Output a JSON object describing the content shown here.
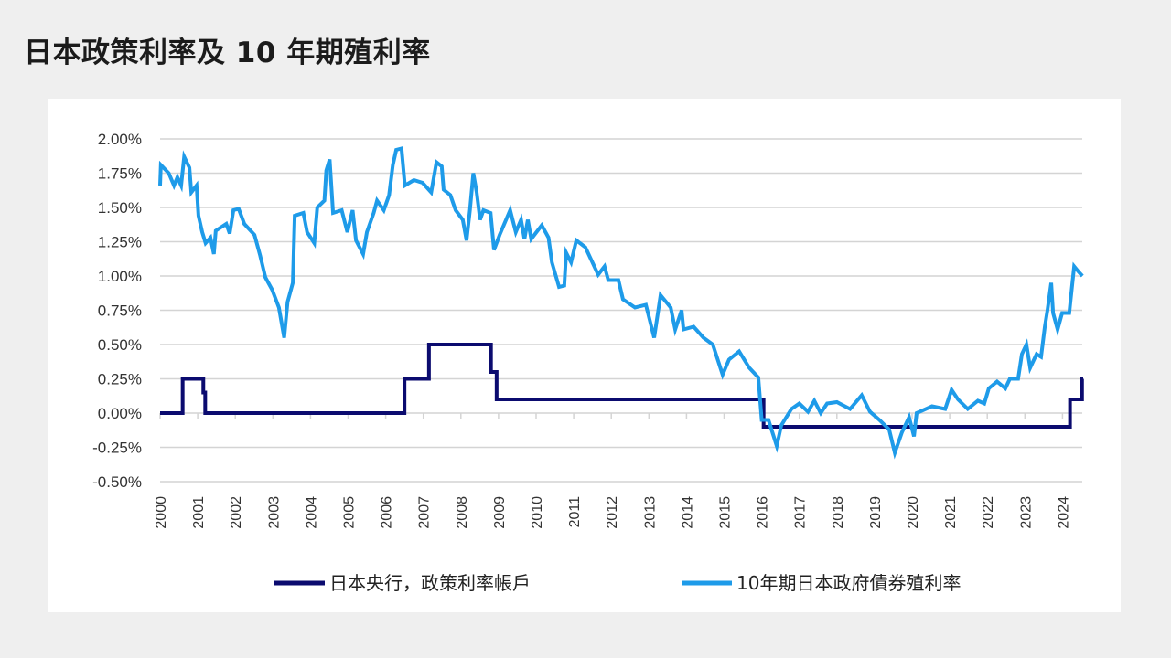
{
  "title": "日本政策利率及 10 年期殖利率",
  "chart_data": {
    "type": "line",
    "title": "日本政策利率及 10 年期殖利率",
    "xlabel": "",
    "ylabel": "",
    "xlim": [
      2000,
      2024.55
    ],
    "ylim": [
      -0.5,
      2.0
    ],
    "grid": true,
    "legend_position": "bottom",
    "yticks": [
      "2.00%",
      "1.75%",
      "1.50%",
      "1.25%",
      "1.00%",
      "0.75%",
      "0.50%",
      "0.25%",
      "0.00%",
      "-0.25%",
      "-0.50%"
    ],
    "ytick_values": [
      2.0,
      1.75,
      1.5,
      1.25,
      1.0,
      0.75,
      0.5,
      0.25,
      0.0,
      -0.25,
      -0.5
    ],
    "xticks": [
      "2000",
      "2001",
      "2002",
      "2003",
      "2004",
      "2005",
      "2006",
      "2007",
      "2008",
      "2009",
      "2010",
      "2011",
      "2012",
      "2013",
      "2014",
      "2015",
      "2016",
      "2017",
      "2018",
      "2019",
      "2020",
      "2021",
      "2022",
      "2023",
      "2024"
    ],
    "series": [
      {
        "name": "日本央行，政策利率帳戶",
        "color": "#0b0b6f",
        "step": true,
        "points": [
          [
            2000,
            0
          ],
          [
            2000.6,
            0.25
          ],
          [
            2001.15,
            0.15
          ],
          [
            2001.2,
            0
          ],
          [
            2006.5,
            0.25
          ],
          [
            2007.15,
            0.5
          ],
          [
            2008.8,
            0.3
          ],
          [
            2008.95,
            0.1
          ],
          [
            2016.05,
            -0.1
          ],
          [
            2024.2,
            0.1
          ],
          [
            2024.52,
            0.25
          ],
          [
            2024.55,
            0.25
          ]
        ]
      },
      {
        "name": "10年期日本政府債券殖利率",
        "color": "#1e9be9",
        "step": false,
        "points": [
          [
            2000.0,
            1.66
          ],
          [
            2000.02,
            1.81
          ],
          [
            2000.23,
            1.75
          ],
          [
            2000.37,
            1.66
          ],
          [
            2000.46,
            1.72
          ],
          [
            2000.56,
            1.66
          ],
          [
            2000.64,
            1.87
          ],
          [
            2000.78,
            1.79
          ],
          [
            2000.83,
            1.61
          ],
          [
            2000.97,
            1.66
          ],
          [
            2001.02,
            1.44
          ],
          [
            2001.12,
            1.32
          ],
          [
            2001.21,
            1.24
          ],
          [
            2001.34,
            1.28
          ],
          [
            2001.43,
            1.16
          ],
          [
            2001.48,
            1.33
          ],
          [
            2001.76,
            1.38
          ],
          [
            2001.85,
            1.31
          ],
          [
            2001.95,
            1.48
          ],
          [
            2002.09,
            1.49
          ],
          [
            2002.24,
            1.38
          ],
          [
            2002.51,
            1.3
          ],
          [
            2002.66,
            1.15
          ],
          [
            2002.8,
            0.99
          ],
          [
            2002.98,
            0.9
          ],
          [
            2003.16,
            0.77
          ],
          [
            2003.3,
            0.55
          ],
          [
            2003.39,
            0.81
          ],
          [
            2003.53,
            0.95
          ],
          [
            2003.58,
            1.44
          ],
          [
            2003.81,
            1.46
          ],
          [
            2003.91,
            1.32
          ],
          [
            2004.1,
            1.24
          ],
          [
            2004.18,
            1.5
          ],
          [
            2004.37,
            1.55
          ],
          [
            2004.42,
            1.77
          ],
          [
            2004.51,
            1.85
          ],
          [
            2004.6,
            1.46
          ],
          [
            2004.83,
            1.48
          ],
          [
            2004.98,
            1.32
          ],
          [
            2005.12,
            1.48
          ],
          [
            2005.21,
            1.26
          ],
          [
            2005.4,
            1.16
          ],
          [
            2005.5,
            1.32
          ],
          [
            2005.68,
            1.46
          ],
          [
            2005.77,
            1.55
          ],
          [
            2005.95,
            1.48
          ],
          [
            2006.09,
            1.59
          ],
          [
            2006.19,
            1.81
          ],
          [
            2006.28,
            1.92
          ],
          [
            2006.42,
            1.93
          ],
          [
            2006.51,
            1.66
          ],
          [
            2006.75,
            1.7
          ],
          [
            2006.98,
            1.68
          ],
          [
            2007.21,
            1.61
          ],
          [
            2007.35,
            1.83
          ],
          [
            2007.49,
            1.8
          ],
          [
            2007.54,
            1.63
          ],
          [
            2007.72,
            1.59
          ],
          [
            2007.86,
            1.48
          ],
          [
            2008.05,
            1.41
          ],
          [
            2008.15,
            1.26
          ],
          [
            2008.24,
            1.48
          ],
          [
            2008.33,
            1.75
          ],
          [
            2008.42,
            1.61
          ],
          [
            2008.51,
            1.41
          ],
          [
            2008.6,
            1.48
          ],
          [
            2008.79,
            1.46
          ],
          [
            2008.88,
            1.19
          ],
          [
            2009.03,
            1.3
          ],
          [
            2009.31,
            1.48
          ],
          [
            2009.46,
            1.32
          ],
          [
            2009.6,
            1.41
          ],
          [
            2009.69,
            1.27
          ],
          [
            2009.78,
            1.41
          ],
          [
            2009.87,
            1.27
          ],
          [
            2010.15,
            1.37
          ],
          [
            2010.33,
            1.28
          ],
          [
            2010.42,
            1.1
          ],
          [
            2010.61,
            0.92
          ],
          [
            2010.75,
            0.93
          ],
          [
            2010.8,
            1.17
          ],
          [
            2010.93,
            1.1
          ],
          [
            2011.07,
            1.26
          ],
          [
            2011.31,
            1.21
          ],
          [
            2011.65,
            1.01
          ],
          [
            2011.82,
            1.07
          ],
          [
            2011.92,
            0.97
          ],
          [
            2012.19,
            0.97
          ],
          [
            2012.31,
            0.83
          ],
          [
            2012.63,
            0.77
          ],
          [
            2012.92,
            0.79
          ],
          [
            2013.14,
            0.55
          ],
          [
            2013.31,
            0.86
          ],
          [
            2013.58,
            0.77
          ],
          [
            2013.7,
            0.61
          ],
          [
            2013.87,
            0.75
          ],
          [
            2013.92,
            0.61
          ],
          [
            2014.19,
            0.63
          ],
          [
            2014.45,
            0.55
          ],
          [
            2014.7,
            0.5
          ],
          [
            2014.96,
            0.28
          ],
          [
            2015.13,
            0.39
          ],
          [
            2015.4,
            0.45
          ],
          [
            2015.67,
            0.33
          ],
          [
            2015.91,
            0.26
          ],
          [
            2016.0,
            -0.05
          ],
          [
            2016.18,
            -0.05
          ],
          [
            2016.4,
            -0.24
          ],
          [
            2016.52,
            -0.09
          ],
          [
            2016.79,
            0.03
          ],
          [
            2017.0,
            0.07
          ],
          [
            2017.23,
            0.01
          ],
          [
            2017.4,
            0.09
          ],
          [
            2017.57,
            0.0
          ],
          [
            2017.74,
            0.07
          ],
          [
            2018.0,
            0.08
          ],
          [
            2018.35,
            0.03
          ],
          [
            2018.66,
            0.13
          ],
          [
            2018.88,
            0.01
          ],
          [
            2019.13,
            -0.05
          ],
          [
            2019.39,
            -0.12
          ],
          [
            2019.54,
            -0.29
          ],
          [
            2019.73,
            -0.14
          ],
          [
            2019.92,
            -0.03
          ],
          [
            2020.05,
            -0.17
          ],
          [
            2020.12,
            0.0
          ],
          [
            2020.53,
            0.05
          ],
          [
            2020.88,
            0.03
          ],
          [
            2021.05,
            0.17
          ],
          [
            2021.22,
            0.1
          ],
          [
            2021.48,
            0.03
          ],
          [
            2021.75,
            0.09
          ],
          [
            2021.92,
            0.07
          ],
          [
            2022.04,
            0.18
          ],
          [
            2022.26,
            0.23
          ],
          [
            2022.48,
            0.18
          ],
          [
            2022.6,
            0.25
          ],
          [
            2022.82,
            0.25
          ],
          [
            2022.92,
            0.43
          ],
          [
            2023.04,
            0.5
          ],
          [
            2023.14,
            0.33
          ],
          [
            2023.31,
            0.43
          ],
          [
            2023.43,
            0.41
          ],
          [
            2023.53,
            0.63
          ],
          [
            2023.6,
            0.75
          ],
          [
            2023.7,
            0.95
          ],
          [
            2023.75,
            0.73
          ],
          [
            2023.87,
            0.61
          ],
          [
            2023.99,
            0.73
          ],
          [
            2024.18,
            0.73
          ],
          [
            2024.21,
            0.81
          ],
          [
            2024.31,
            1.07
          ],
          [
            2024.43,
            1.03
          ],
          [
            2024.53,
            1.0
          ]
        ]
      }
    ]
  }
}
